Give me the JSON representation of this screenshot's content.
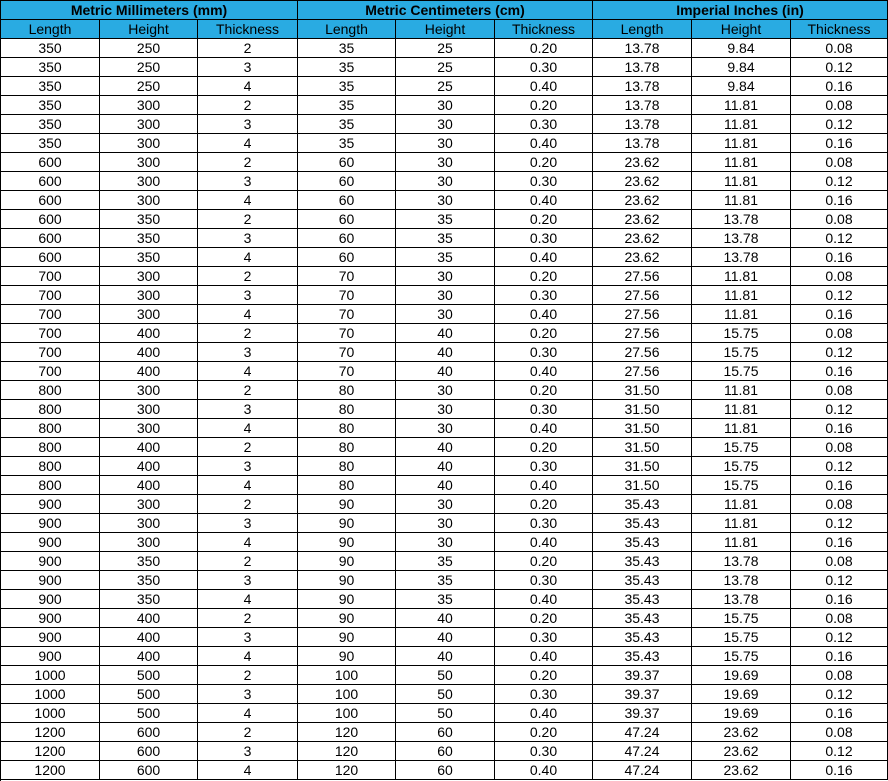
{
  "header": {
    "groups": [
      "Metric Millimeters (mm)",
      "Metric Centimeters (cm)",
      "Imperial Inches (in)"
    ],
    "columns": [
      "Length",
      "Height",
      "Thickness",
      "Length",
      "Height",
      "Thickness",
      "Length",
      "Height",
      "Thickness"
    ]
  },
  "table": {
    "rows": [
      [
        "350",
        "250",
        "2",
        "35",
        "25",
        "0.20",
        "13.78",
        "9.84",
        "0.08"
      ],
      [
        "350",
        "250",
        "3",
        "35",
        "25",
        "0.30",
        "13.78",
        "9.84",
        "0.12"
      ],
      [
        "350",
        "250",
        "4",
        "35",
        "25",
        "0.40",
        "13.78",
        "9.84",
        "0.16"
      ],
      [
        "350",
        "300",
        "2",
        "35",
        "30",
        "0.20",
        "13.78",
        "11.81",
        "0.08"
      ],
      [
        "350",
        "300",
        "3",
        "35",
        "30",
        "0.30",
        "13.78",
        "11.81",
        "0.12"
      ],
      [
        "350",
        "300",
        "4",
        "35",
        "30",
        "0.40",
        "13.78",
        "11.81",
        "0.16"
      ],
      [
        "600",
        "300",
        "2",
        "60",
        "30",
        "0.20",
        "23.62",
        "11.81",
        "0.08"
      ],
      [
        "600",
        "300",
        "3",
        "60",
        "30",
        "0.30",
        "23.62",
        "11.81",
        "0.12"
      ],
      [
        "600",
        "300",
        "4",
        "60",
        "30",
        "0.40",
        "23.62",
        "11.81",
        "0.16"
      ],
      [
        "600",
        "350",
        "2",
        "60",
        "35",
        "0.20",
        "23.62",
        "13.78",
        "0.08"
      ],
      [
        "600",
        "350",
        "3",
        "60",
        "35",
        "0.30",
        "23.62",
        "13.78",
        "0.12"
      ],
      [
        "600",
        "350",
        "4",
        "60",
        "35",
        "0.40",
        "23.62",
        "13.78",
        "0.16"
      ],
      [
        "700",
        "300",
        "2",
        "70",
        "30",
        "0.20",
        "27.56",
        "11.81",
        "0.08"
      ],
      [
        "700",
        "300",
        "3",
        "70",
        "30",
        "0.30",
        "27.56",
        "11.81",
        "0.12"
      ],
      [
        "700",
        "300",
        "4",
        "70",
        "30",
        "0.40",
        "27.56",
        "11.81",
        "0.16"
      ],
      [
        "700",
        "400",
        "2",
        "70",
        "40",
        "0.20",
        "27.56",
        "15.75",
        "0.08"
      ],
      [
        "700",
        "400",
        "3",
        "70",
        "40",
        "0.30",
        "27.56",
        "15.75",
        "0.12"
      ],
      [
        "700",
        "400",
        "4",
        "70",
        "40",
        "0.40",
        "27.56",
        "15.75",
        "0.16"
      ],
      [
        "800",
        "300",
        "2",
        "80",
        "30",
        "0.20",
        "31.50",
        "11.81",
        "0.08"
      ],
      [
        "800",
        "300",
        "3",
        "80",
        "30",
        "0.30",
        "31.50",
        "11.81",
        "0.12"
      ],
      [
        "800",
        "300",
        "4",
        "80",
        "30",
        "0.40",
        "31.50",
        "11.81",
        "0.16"
      ],
      [
        "800",
        "400",
        "2",
        "80",
        "40",
        "0.20",
        "31.50",
        "15.75",
        "0.08"
      ],
      [
        "800",
        "400",
        "3",
        "80",
        "40",
        "0.30",
        "31.50",
        "15.75",
        "0.12"
      ],
      [
        "800",
        "400",
        "4",
        "80",
        "40",
        "0.40",
        "31.50",
        "15.75",
        "0.16"
      ],
      [
        "900",
        "300",
        "2",
        "90",
        "30",
        "0.20",
        "35.43",
        "11.81",
        "0.08"
      ],
      [
        "900",
        "300",
        "3",
        "90",
        "30",
        "0.30",
        "35.43",
        "11.81",
        "0.12"
      ],
      [
        "900",
        "300",
        "4",
        "90",
        "30",
        "0.40",
        "35.43",
        "11.81",
        "0.16"
      ],
      [
        "900",
        "350",
        "2",
        "90",
        "35",
        "0.20",
        "35.43",
        "13.78",
        "0.08"
      ],
      [
        "900",
        "350",
        "3",
        "90",
        "35",
        "0.30",
        "35.43",
        "13.78",
        "0.12"
      ],
      [
        "900",
        "350",
        "4",
        "90",
        "35",
        "0.40",
        "35.43",
        "13.78",
        "0.16"
      ],
      [
        "900",
        "400",
        "2",
        "90",
        "40",
        "0.20",
        "35.43",
        "15.75",
        "0.08"
      ],
      [
        "900",
        "400",
        "3",
        "90",
        "40",
        "0.30",
        "35.43",
        "15.75",
        "0.12"
      ],
      [
        "900",
        "400",
        "4",
        "90",
        "40",
        "0.40",
        "35.43",
        "15.75",
        "0.16"
      ],
      [
        "1000",
        "500",
        "2",
        "100",
        "50",
        "0.20",
        "39.37",
        "19.69",
        "0.08"
      ],
      [
        "1000",
        "500",
        "3",
        "100",
        "50",
        "0.30",
        "39.37",
        "19.69",
        "0.12"
      ],
      [
        "1000",
        "500",
        "4",
        "100",
        "50",
        "0.40",
        "39.37",
        "19.69",
        "0.16"
      ],
      [
        "1200",
        "600",
        "2",
        "120",
        "60",
        "0.20",
        "47.24",
        "23.62",
        "0.08"
      ],
      [
        "1200",
        "600",
        "3",
        "120",
        "60",
        "0.30",
        "47.24",
        "23.62",
        "0.12"
      ],
      [
        "1200",
        "600",
        "4",
        "120",
        "60",
        "0.40",
        "47.24",
        "23.62",
        "0.16"
      ]
    ]
  }
}
